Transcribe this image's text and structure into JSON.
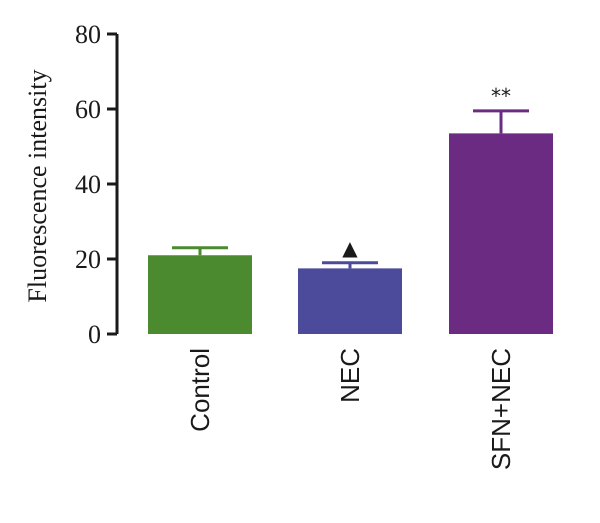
{
  "chart_data": {
    "type": "bar",
    "categories": [
      "Control",
      "NEC",
      "SFN+NEC"
    ],
    "values": [
      21,
      17.5,
      53.5
    ],
    "errors": [
      2,
      1.5,
      6
    ],
    "colors": [
      "#4c8a30",
      "#4c4a9a",
      "#6b2b82"
    ],
    "annotations": [
      "",
      "▲",
      "**"
    ],
    "ylabel": "Fluorescence intensity",
    "ylim": [
      0,
      80
    ],
    "yticks": [
      0,
      20,
      40,
      60,
      80
    ],
    "grid": false
  }
}
